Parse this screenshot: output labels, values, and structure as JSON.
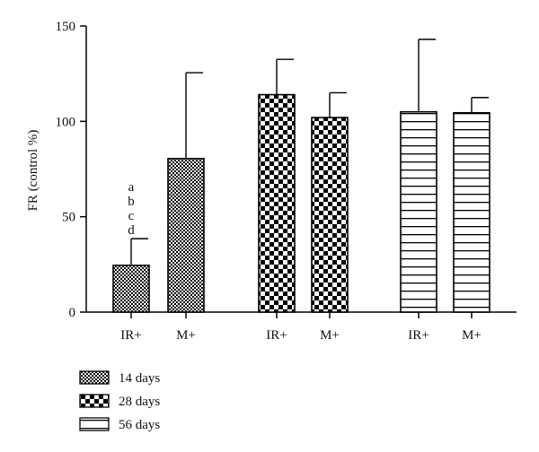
{
  "chart_data": {
    "type": "bar",
    "ylabel": "FR (control %)",
    "ylim": [
      0,
      150
    ],
    "yticks": [
      0,
      50,
      100,
      150
    ],
    "bars": [
      {
        "label": "IR+",
        "value": 24.5,
        "error": 38.5,
        "series": 0,
        "annotation": [
          "a",
          "b",
          "c",
          "d"
        ]
      },
      {
        "label": "M+",
        "value": 80.5,
        "error": 125.5,
        "series": 0
      },
      {
        "label": "IR+",
        "value": 114.0,
        "error": 132.5,
        "series": 1
      },
      {
        "label": "M+",
        "value": 102.0,
        "error": 115.0,
        "series": 1
      },
      {
        "label": "IR+",
        "value": 105.0,
        "error": 143.0,
        "series": 2
      },
      {
        "label": "M+",
        "value": 104.5,
        "error": 112.5,
        "series": 2
      }
    ],
    "series": [
      {
        "name": "14 days",
        "pattern": "fine-check"
      },
      {
        "name": "28 days",
        "pattern": "coarse-check"
      },
      {
        "name": "56 days",
        "pattern": "horizontal-lines"
      }
    ],
    "legend_position": "bottom-left"
  }
}
